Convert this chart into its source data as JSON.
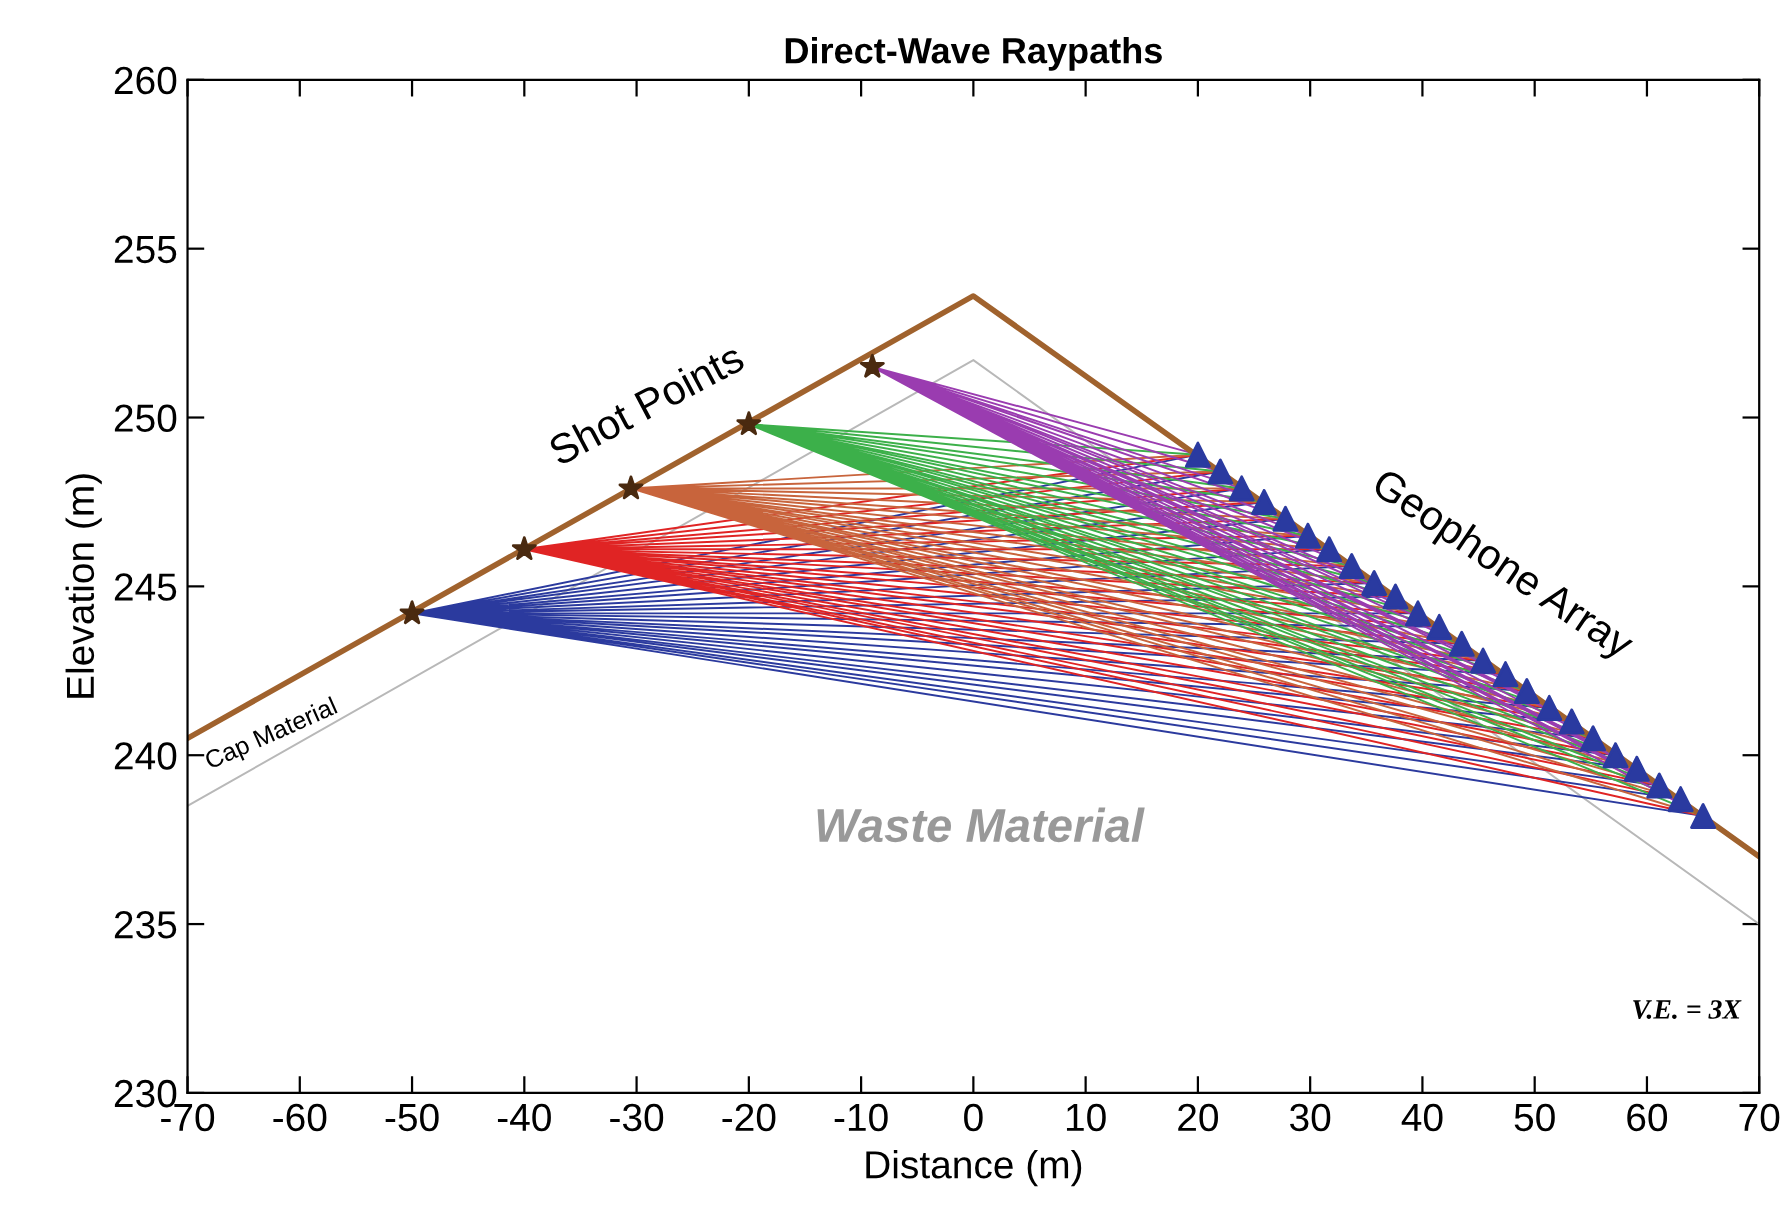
{
  "chart_data": {
    "type": "line",
    "title": "Direct-Wave Raypaths",
    "xlabel": "Distance (m)",
    "ylabel": "Elevation (m)",
    "xlim": [
      -70,
      70
    ],
    "ylim": [
      230,
      260
    ],
    "xticks": [
      -70,
      -60,
      -50,
      -40,
      -30,
      -20,
      -10,
      0,
      10,
      20,
      30,
      40,
      50,
      60,
      70
    ],
    "yticks": [
      230,
      235,
      240,
      245,
      250,
      255,
      260
    ],
    "grid": false,
    "legend": false,
    "line_style": "solid",
    "annotations": [
      "Shot Points",
      "Geophone Array",
      "Cap Material",
      "Waste Material",
      "V.E. = 3X"
    ],
    "series": [
      {
        "color": "#b8b8b8",
        "marker": "none",
        "x": [
          -70,
          0,
          70
        ],
        "values": [
          238.5,
          251.7,
          235.0
        ]
      },
      {
        "color": "#2b3a9e",
        "marker": "none",
        "x": [
          -50,
          20.0,
          -50,
          22.0,
          -50,
          23.9,
          -50,
          25.9,
          -50,
          27.8,
          -50,
          29.8,
          -50,
          31.7,
          -50,
          33.7,
          -50,
          35.7,
          -50,
          37.6,
          -50,
          39.6,
          -50,
          41.5,
          -50,
          43.5,
          -50,
          45.4,
          -50,
          47.4,
          -50,
          49.3,
          -50,
          51.3,
          -50,
          53.3,
          -50,
          55.2,
          -50,
          57.2,
          -50,
          59.1,
          -50,
          61.1,
          -50,
          63.0,
          -50,
          65.0
        ],
        "values": [
          244.2,
          248.9,
          244.2,
          248.4,
          244.2,
          247.9,
          244.2,
          247.5,
          244.2,
          247.0,
          244.2,
          246.5,
          244.2,
          246.1,
          244.2,
          245.6,
          244.2,
          245.1,
          244.2,
          244.7,
          244.2,
          244.2,
          244.2,
          243.8,
          244.2,
          243.3,
          244.2,
          242.8,
          244.2,
          242.4,
          244.2,
          241.9,
          244.2,
          241.4,
          244.2,
          241.0,
          244.2,
          240.5,
          244.2,
          240.0,
          244.2,
          239.6,
          244.2,
          239.1,
          244.2,
          238.7,
          244.2,
          238.2
        ]
      },
      {
        "color": "#e02424",
        "marker": "none",
        "x": [
          -40,
          20.0,
          -40,
          22.0,
          -40,
          23.9,
          -40,
          25.9,
          -40,
          27.8,
          -40,
          29.8,
          -40,
          31.7,
          -40,
          33.7,
          -40,
          35.7,
          -40,
          37.6,
          -40,
          39.6,
          -40,
          41.5,
          -40,
          43.5,
          -40,
          45.4,
          -40,
          47.4,
          -40,
          49.3,
          -40,
          51.3,
          -40,
          53.3,
          -40,
          55.2,
          -40,
          57.2,
          -40,
          59.1,
          -40,
          61.1,
          -40,
          63.0,
          -40,
          65.0
        ],
        "values": [
          246.1,
          248.9,
          246.1,
          248.4,
          246.1,
          247.9,
          246.1,
          247.5,
          246.1,
          247.0,
          246.1,
          246.5,
          246.1,
          246.1,
          246.1,
          245.6,
          246.1,
          245.1,
          246.1,
          244.7,
          246.1,
          244.2,
          246.1,
          243.8,
          246.1,
          243.3,
          246.1,
          242.8,
          246.1,
          242.4,
          246.1,
          241.9,
          246.1,
          241.4,
          246.1,
          241.0,
          246.1,
          240.5,
          246.1,
          240.0,
          246.1,
          239.6,
          246.1,
          239.1,
          246.1,
          238.7,
          246.1,
          238.2
        ]
      },
      {
        "color": "#c8643c",
        "marker": "none",
        "x": [
          -30.5,
          20.0,
          -30.5,
          22.0,
          -30.5,
          23.9,
          -30.5,
          25.9,
          -30.5,
          27.8,
          -30.5,
          29.8,
          -30.5,
          31.7,
          -30.5,
          33.7,
          -30.5,
          35.7,
          -30.5,
          37.6,
          -30.5,
          39.6,
          -30.5,
          41.5,
          -30.5,
          43.5,
          -30.5,
          45.4,
          -30.5,
          47.4,
          -30.5,
          49.3,
          -30.5,
          51.3,
          -30.5,
          53.3,
          -30.5,
          55.2,
          -30.5,
          57.2,
          -30.5,
          59.1,
          -30.5,
          61.1,
          -30.5,
          63.0,
          -30.5,
          65.0
        ],
        "values": [
          247.9,
          248.9,
          247.9,
          248.4,
          247.9,
          247.9,
          247.9,
          247.5,
          247.9,
          247.0,
          247.9,
          246.5,
          247.9,
          246.1,
          247.9,
          245.6,
          247.9,
          245.1,
          247.9,
          244.7,
          247.9,
          244.2,
          247.9,
          243.8,
          247.9,
          243.3,
          247.9,
          242.8,
          247.9,
          242.4,
          247.9,
          241.9,
          247.9,
          241.4,
          247.9,
          241.0,
          247.9,
          240.5,
          247.9,
          240.0,
          247.9,
          239.6,
          247.9,
          239.1,
          247.9,
          238.7,
          247.9,
          238.2
        ]
      },
      {
        "color": "#3cb04a",
        "marker": "none",
        "x": [
          -20,
          20.0,
          -20,
          22.0,
          -20,
          23.9,
          -20,
          25.9,
          -20,
          27.8,
          -20,
          29.8,
          -20,
          31.7,
          -20,
          33.7,
          -20,
          35.7,
          -20,
          37.6,
          -20,
          39.6,
          -20,
          41.5,
          -20,
          43.5,
          -20,
          45.4,
          -20,
          47.4,
          -20,
          49.3,
          -20,
          51.3,
          -20,
          53.3,
          -20,
          55.2,
          -20,
          57.2,
          -20,
          59.1,
          -20,
          61.1,
          -20,
          63.0,
          -20,
          65.0
        ],
        "values": [
          249.8,
          248.9,
          249.8,
          248.4,
          249.8,
          247.9,
          249.8,
          247.5,
          249.8,
          247.0,
          249.8,
          246.5,
          249.8,
          246.1,
          249.8,
          245.6,
          249.8,
          245.1,
          249.8,
          244.7,
          249.8,
          244.2,
          249.8,
          243.8,
          249.8,
          243.3,
          249.8,
          242.8,
          249.8,
          242.4,
          249.8,
          241.9,
          249.8,
          241.4,
          249.8,
          241.0,
          249.8,
          240.5,
          249.8,
          240.0,
          249.8,
          239.6,
          249.8,
          239.1,
          249.8,
          238.7,
          249.8,
          238.2
        ]
      },
      {
        "color": "#9a3cb0",
        "marker": "none",
        "x": [
          -9,
          20.0,
          -9,
          22.0,
          -9,
          23.9,
          -9,
          25.9,
          -9,
          27.8,
          -9,
          29.8,
          -9,
          31.7,
          -9,
          33.7,
          -9,
          35.7,
          -9,
          37.6,
          -9,
          39.6,
          -9,
          41.5,
          -9,
          43.5,
          -9,
          45.4,
          -9,
          47.4,
          -9,
          49.3,
          -9,
          51.3,
          -9,
          53.3,
          -9,
          55.2,
          -9,
          57.2,
          -9,
          59.1,
          -9,
          61.1,
          -9,
          63.0,
          -9,
          65.0
        ],
        "values": [
          251.5,
          248.9,
          251.5,
          248.4,
          251.5,
          247.9,
          251.5,
          247.5,
          251.5,
          247.0,
          251.5,
          246.5,
          251.5,
          246.1,
          251.5,
          245.6,
          251.5,
          245.1,
          251.5,
          244.7,
          251.5,
          244.2,
          251.5,
          243.8,
          251.5,
          243.3,
          251.5,
          242.8,
          251.5,
          242.4,
          251.5,
          241.9,
          251.5,
          241.4,
          251.5,
          241.0,
          251.5,
          240.5,
          251.5,
          240.0,
          251.5,
          239.6,
          251.5,
          239.1,
          251.5,
          238.7,
          251.5,
          238.2
        ]
      },
      {
        "color": "#a0622d",
        "marker": "none",
        "x": [
          -70,
          0,
          70
        ],
        "values": [
          240.5,
          253.6,
          237.0
        ]
      },
      {
        "type": "scatter",
        "color": "#4a2a10",
        "marker": "star",
        "x": [
          -50,
          -40,
          -30.5,
          -20,
          -9
        ],
        "values": [
          244.2,
          246.1,
          247.9,
          249.8,
          251.5
        ]
      },
      {
        "type": "scatter",
        "color": "#2a3aa0",
        "marker": "triangle",
        "x": [
          20.0,
          22.0,
          23.9,
          25.9,
          27.8,
          29.8,
          31.7,
          33.7,
          35.7,
          37.6,
          39.6,
          41.5,
          43.5,
          45.4,
          47.4,
          49.3,
          51.3,
          53.3,
          55.2,
          57.2,
          59.1,
          61.1,
          63.0,
          65.0
        ],
        "values": [
          248.9,
          248.4,
          247.9,
          247.5,
          247.0,
          246.5,
          246.1,
          245.6,
          245.1,
          244.7,
          244.2,
          243.8,
          243.3,
          242.8,
          242.4,
          241.9,
          241.4,
          241.0,
          240.5,
          240.0,
          239.6,
          239.1,
          238.7,
          238.2
        ]
      }
    ]
  }
}
